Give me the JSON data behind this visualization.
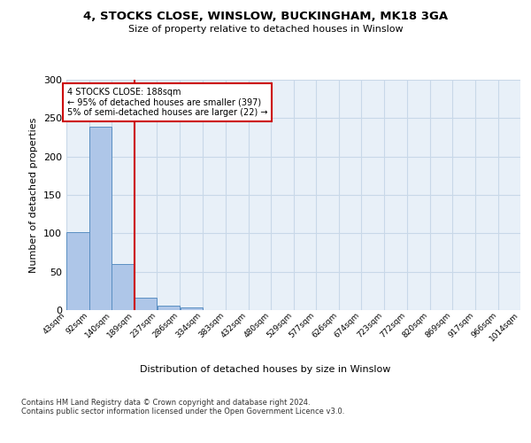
{
  "title": "4, STOCKS CLOSE, WINSLOW, BUCKINGHAM, MK18 3GA",
  "subtitle": "Size of property relative to detached houses in Winslow",
  "xlabel": "Distribution of detached houses by size in Winslow",
  "ylabel": "Number of detached properties",
  "footer": "Contains HM Land Registry data © Crown copyright and database right 2024.\nContains public sector information licensed under the Open Government Licence v3.0.",
  "bins": [
    43,
    92,
    140,
    189,
    237,
    286,
    334,
    383,
    432,
    480,
    529,
    577,
    626,
    674,
    723,
    772,
    820,
    869,
    917,
    966,
    1014
  ],
  "bar_heights": [
    101,
    239,
    60,
    16,
    6,
    3,
    0,
    0,
    0,
    0,
    0,
    0,
    0,
    0,
    0,
    0,
    0,
    0,
    0,
    0
  ],
  "bar_color": "#aec6e8",
  "bar_edge_color": "#5a8fc2",
  "grid_color": "#c8d8e8",
  "background_color": "#e8f0f8",
  "property_size": 188,
  "property_line_color": "#cc0000",
  "annotation_text": "4 STOCKS CLOSE: 188sqm\n← 95% of detached houses are smaller (397)\n5% of semi-detached houses are larger (22) →",
  "annotation_box_color": "#cc0000",
  "ylim": [
    0,
    300
  ],
  "yticks": [
    0,
    50,
    100,
    150,
    200,
    250,
    300
  ],
  "tick_labels": [
    "43sqm",
    "92sqm",
    "140sqm",
    "189sqm",
    "237sqm",
    "286sqm",
    "334sqm",
    "383sqm",
    "432sqm",
    "480sqm",
    "529sqm",
    "577sqm",
    "626sqm",
    "674sqm",
    "723sqm",
    "772sqm",
    "820sqm",
    "869sqm",
    "917sqm",
    "966sqm",
    "1014sqm"
  ]
}
